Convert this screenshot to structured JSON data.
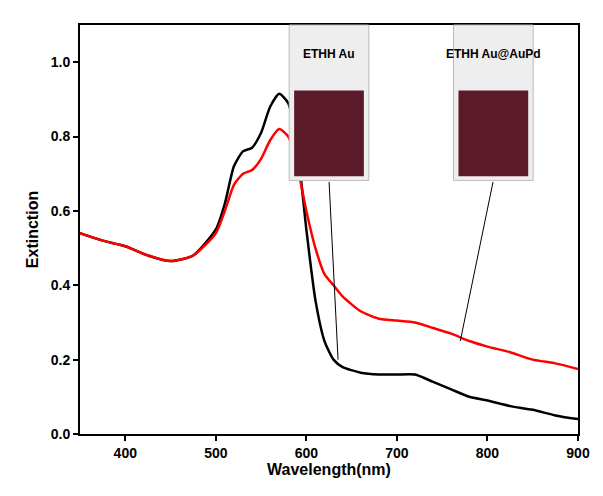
{
  "chart_data": {
    "type": "line",
    "xlabel": "Wavelength(nm)",
    "ylabel": "Extinction",
    "x": [
      350,
      375,
      400,
      425,
      450,
      475,
      500,
      510,
      520,
      530,
      540,
      550,
      560,
      570,
      580,
      590,
      600,
      610,
      620,
      630,
      640,
      660,
      680,
      700,
      720,
      740,
      760,
      780,
      800,
      825,
      850,
      875,
      900
    ],
    "series": [
      {
        "name": "ETHH Au",
        "color": "#000000",
        "values": [
          0.54,
          0.52,
          0.505,
          0.48,
          0.465,
          0.48,
          0.55,
          0.62,
          0.72,
          0.76,
          0.77,
          0.81,
          0.88,
          0.915,
          0.89,
          0.77,
          0.55,
          0.36,
          0.25,
          0.2,
          0.18,
          0.165,
          0.16,
          0.16,
          0.16,
          0.14,
          0.12,
          0.1,
          0.09,
          0.075,
          0.065,
          0.05,
          0.04
        ]
      },
      {
        "name": "ETHH Au@AuPd",
        "color": "#ff0000",
        "values": [
          0.54,
          0.52,
          0.505,
          0.48,
          0.465,
          0.48,
          0.54,
          0.6,
          0.67,
          0.7,
          0.71,
          0.74,
          0.79,
          0.82,
          0.8,
          0.72,
          0.6,
          0.5,
          0.43,
          0.4,
          0.37,
          0.33,
          0.31,
          0.305,
          0.3,
          0.285,
          0.27,
          0.25,
          0.235,
          0.22,
          0.2,
          0.19,
          0.175
        ]
      }
    ],
    "xlim": [
      350,
      900
    ],
    "xticks": [
      400,
      500,
      600,
      700,
      800,
      900
    ],
    "ylim": [
      0,
      1.1
    ],
    "yticks": [
      {
        "value": 0,
        "label": "0.0"
      },
      0.2,
      0.4,
      0.6,
      0.8,
      {
        "value": 1,
        "label": "1.0"
      }
    ],
    "annotations": [
      {
        "text": "ETHH Au",
        "x": 635,
        "y": 0.2
      },
      {
        "text": "ETHH Au@AuPd",
        "x": 770,
        "y": 0.25
      }
    ],
    "grid": false
  }
}
